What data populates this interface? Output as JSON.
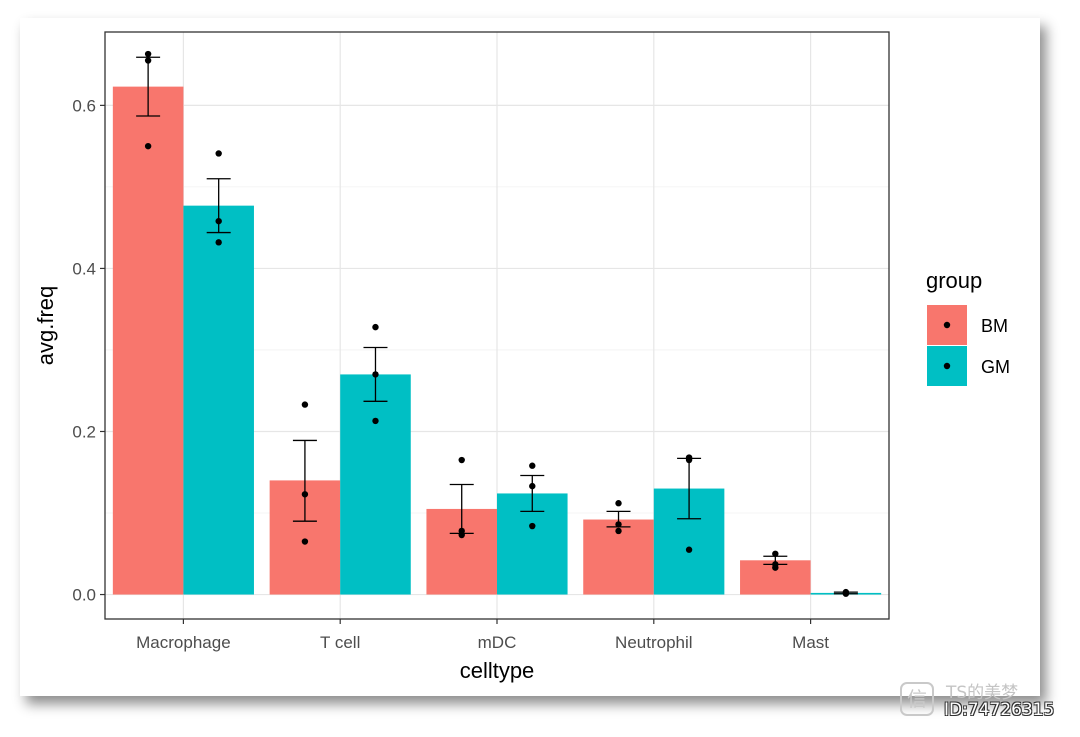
{
  "chart_data": {
    "type": "bar",
    "title": "",
    "xlabel": "celltype",
    "ylabel": "avg.freq",
    "ylim": [
      -0.03,
      0.69
    ],
    "yticks": [
      0.0,
      0.2,
      0.4,
      0.6
    ],
    "ytick_labels": [
      "0.0",
      "0.2",
      "0.4",
      "0.6"
    ],
    "grid": true,
    "categories": [
      "Macrophage",
      "T cell",
      "mDC",
      "Neutrophil",
      "Mast"
    ],
    "legend": {
      "title": "group",
      "position": "right"
    },
    "series": [
      {
        "name": "BM",
        "color": "#F8766D",
        "values": [
          0.623,
          0.14,
          0.105,
          0.092,
          0.042
        ],
        "error_low": [
          0.587,
          0.09,
          0.075,
          0.083,
          0.037
        ],
        "error_high": [
          0.659,
          0.189,
          0.135,
          0.102,
          0.047
        ],
        "points": [
          [
            0.663,
            0.655,
            0.55
          ],
          [
            0.233,
            0.123,
            0.065
          ],
          [
            0.165,
            0.078,
            0.073
          ],
          [
            0.112,
            0.086,
            0.078
          ],
          [
            0.05,
            0.037,
            0.033
          ]
        ]
      },
      {
        "name": "GM",
        "color": "#00BFC4",
        "values": [
          0.477,
          0.27,
          0.124,
          0.13,
          0.002
        ],
        "error_low": [
          0.444,
          0.237,
          0.102,
          0.093,
          0.001
        ],
        "error_high": [
          0.51,
          0.303,
          0.146,
          0.167,
          0.003
        ],
        "points": [
          [
            0.541,
            0.458,
            0.432
          ],
          [
            0.328,
            0.27,
            0.213
          ],
          [
            0.158,
            0.133,
            0.084
          ],
          [
            0.168,
            0.165,
            0.055
          ],
          [
            0.003,
            0.002,
            0.001
          ]
        ]
      }
    ]
  },
  "watermark": {
    "logo_glyph": "信",
    "name": "TS的美梦",
    "id": "ID:74726315"
  }
}
